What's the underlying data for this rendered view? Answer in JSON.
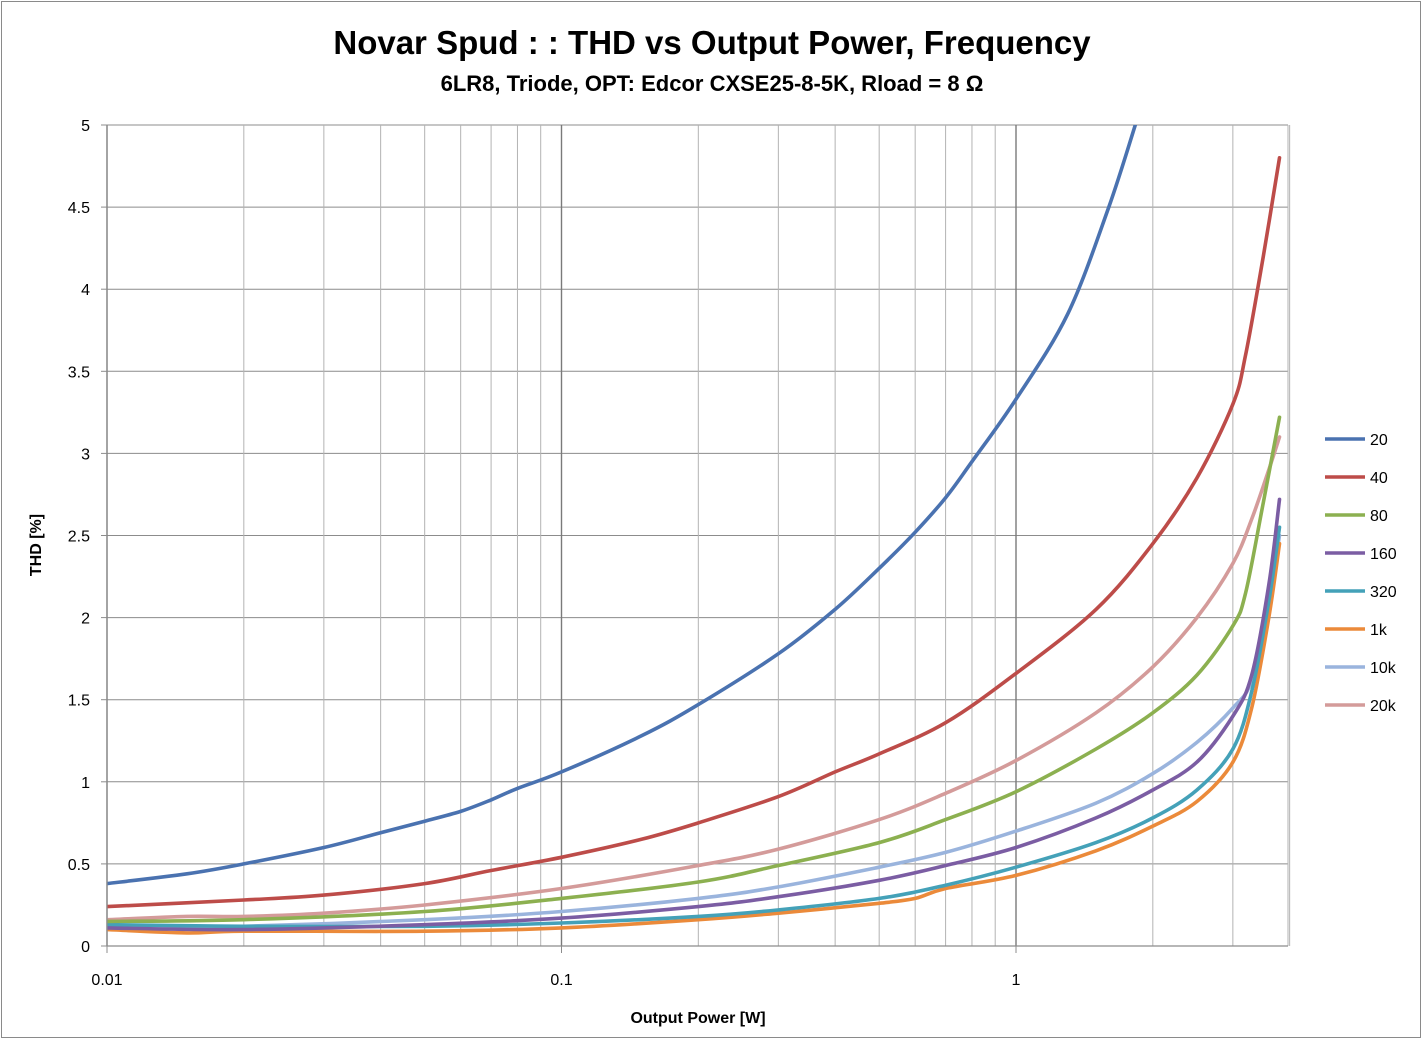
{
  "chart_data": {
    "type": "line",
    "title": "Novar Spud : : THD vs Output Power, Frequency",
    "subtitle": "6LR8, Triode, OPT: Edcor CXSE25-8-5K, Rload = 8 Ω",
    "xlabel": "Output Power [W]",
    "ylabel": "THD [%]",
    "xscale": "log",
    "xlim": [
      0.01,
      4
    ],
    "ylim": [
      0,
      5
    ],
    "xticks": [
      "0.01",
      "0.1",
      "1"
    ],
    "yticks": [
      "0",
      "0.5",
      "1",
      "1.5",
      "2",
      "2.5",
      "3",
      "3.5",
      "4",
      "4.5",
      "5"
    ],
    "grid": true,
    "legend_position": "right",
    "series": [
      {
        "name": "20",
        "color": "#4a72b0",
        "points": [
          [
            0.01,
            0.38
          ],
          [
            0.015,
            0.44
          ],
          [
            0.02,
            0.5
          ],
          [
            0.03,
            0.6
          ],
          [
            0.04,
            0.69
          ],
          [
            0.05,
            0.76
          ],
          [
            0.06,
            0.82
          ],
          [
            0.07,
            0.89
          ],
          [
            0.08,
            0.96
          ],
          [
            0.1,
            1.06
          ],
          [
            0.15,
            1.28
          ],
          [
            0.2,
            1.47
          ],
          [
            0.3,
            1.78
          ],
          [
            0.4,
            2.05
          ],
          [
            0.5,
            2.3
          ],
          [
            0.6,
            2.52
          ],
          [
            0.7,
            2.73
          ],
          [
            0.8,
            2.95
          ],
          [
            1.0,
            3.33
          ],
          [
            1.3,
            3.85
          ],
          [
            1.6,
            4.5
          ],
          [
            1.83,
            5.0
          ]
        ]
      },
      {
        "name": "40",
        "color": "#bd4c49",
        "points": [
          [
            0.01,
            0.24
          ],
          [
            0.02,
            0.28
          ],
          [
            0.03,
            0.31
          ],
          [
            0.05,
            0.38
          ],
          [
            0.07,
            0.46
          ],
          [
            0.1,
            0.54
          ],
          [
            0.15,
            0.65
          ],
          [
            0.2,
            0.75
          ],
          [
            0.3,
            0.91
          ],
          [
            0.4,
            1.06
          ],
          [
            0.5,
            1.17
          ],
          [
            0.7,
            1.36
          ],
          [
            1.0,
            1.66
          ],
          [
            1.5,
            2.05
          ],
          [
            2.0,
            2.45
          ],
          [
            2.5,
            2.85
          ],
          [
            3.0,
            3.3
          ],
          [
            3.2,
            3.6
          ],
          [
            3.5,
            4.2
          ],
          [
            3.8,
            4.8
          ]
        ]
      },
      {
        "name": "80",
        "color": "#8cb050",
        "points": [
          [
            0.01,
            0.15
          ],
          [
            0.02,
            0.16
          ],
          [
            0.05,
            0.21
          ],
          [
            0.1,
            0.29
          ],
          [
            0.2,
            0.39
          ],
          [
            0.3,
            0.49
          ],
          [
            0.5,
            0.63
          ],
          [
            0.7,
            0.77
          ],
          [
            1.0,
            0.94
          ],
          [
            1.5,
            1.2
          ],
          [
            2.0,
            1.42
          ],
          [
            2.5,
            1.65
          ],
          [
            3.0,
            1.95
          ],
          [
            3.2,
            2.15
          ],
          [
            3.5,
            2.7
          ],
          [
            3.8,
            3.22
          ]
        ]
      },
      {
        "name": "160",
        "color": "#7b5da3",
        "points": [
          [
            0.01,
            0.11
          ],
          [
            0.02,
            0.1
          ],
          [
            0.05,
            0.13
          ],
          [
            0.1,
            0.17
          ],
          [
            0.2,
            0.24
          ],
          [
            0.3,
            0.3
          ],
          [
            0.5,
            0.4
          ],
          [
            0.7,
            0.49
          ],
          [
            1.0,
            0.6
          ],
          [
            1.5,
            0.78
          ],
          [
            2.0,
            0.95
          ],
          [
            2.5,
            1.12
          ],
          [
            3.0,
            1.4
          ],
          [
            3.3,
            1.65
          ],
          [
            3.6,
            2.2
          ],
          [
            3.8,
            2.72
          ]
        ]
      },
      {
        "name": "320",
        "color": "#44a1b8",
        "points": [
          [
            0.01,
            0.13
          ],
          [
            0.02,
            0.12
          ],
          [
            0.05,
            0.12
          ],
          [
            0.1,
            0.14
          ],
          [
            0.2,
            0.18
          ],
          [
            0.3,
            0.22
          ],
          [
            0.5,
            0.29
          ],
          [
            0.7,
            0.37
          ],
          [
            1.0,
            0.48
          ],
          [
            1.5,
            0.63
          ],
          [
            2.0,
            0.78
          ],
          [
            2.5,
            0.95
          ],
          [
            3.0,
            1.2
          ],
          [
            3.3,
            1.55
          ],
          [
            3.6,
            2.1
          ],
          [
            3.8,
            2.55
          ]
        ]
      },
      {
        "name": "1k",
        "color": "#eb8a3a",
        "points": [
          [
            0.01,
            0.1
          ],
          [
            0.015,
            0.08
          ],
          [
            0.02,
            0.09
          ],
          [
            0.05,
            0.09
          ],
          [
            0.1,
            0.11
          ],
          [
            0.2,
            0.16
          ],
          [
            0.3,
            0.2
          ],
          [
            0.5,
            0.26
          ],
          [
            0.6,
            0.29
          ],
          [
            0.7,
            0.35
          ],
          [
            1.0,
            0.43
          ],
          [
            1.5,
            0.58
          ],
          [
            2.0,
            0.73
          ],
          [
            2.5,
            0.88
          ],
          [
            3.0,
            1.12
          ],
          [
            3.3,
            1.45
          ],
          [
            3.6,
            2.0
          ],
          [
            3.8,
            2.45
          ]
        ]
      },
      {
        "name": "10k",
        "color": "#9ab4dd",
        "points": [
          [
            0.01,
            0.11
          ],
          [
            0.02,
            0.12
          ],
          [
            0.05,
            0.16
          ],
          [
            0.1,
            0.21
          ],
          [
            0.2,
            0.29
          ],
          [
            0.3,
            0.36
          ],
          [
            0.5,
            0.48
          ],
          [
            0.7,
            0.57
          ],
          [
            1.0,
            0.7
          ],
          [
            1.5,
            0.87
          ],
          [
            2.0,
            1.05
          ],
          [
            2.5,
            1.24
          ],
          [
            3.0,
            1.45
          ],
          [
            3.3,
            1.62
          ],
          [
            3.6,
            2.1
          ],
          [
            3.8,
            2.5
          ]
        ]
      },
      {
        "name": "20k",
        "color": "#d49b9a",
        "points": [
          [
            0.01,
            0.16
          ],
          [
            0.015,
            0.18
          ],
          [
            0.02,
            0.18
          ],
          [
            0.03,
            0.2
          ],
          [
            0.05,
            0.25
          ],
          [
            0.1,
            0.35
          ],
          [
            0.2,
            0.49
          ],
          [
            0.3,
            0.59
          ],
          [
            0.5,
            0.77
          ],
          [
            0.7,
            0.93
          ],
          [
            1.0,
            1.13
          ],
          [
            1.5,
            1.42
          ],
          [
            2.0,
            1.7
          ],
          [
            2.5,
            2.0
          ],
          [
            3.0,
            2.33
          ],
          [
            3.3,
            2.6
          ],
          [
            3.6,
            2.9
          ],
          [
            3.8,
            3.1
          ]
        ]
      }
    ]
  }
}
